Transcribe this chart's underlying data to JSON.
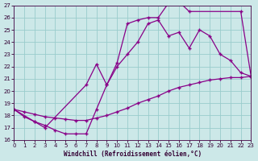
{
  "xlabel": "Windchill (Refroidissement éolien,°C)",
  "bg_color": "#cce8e8",
  "grid_color": "#99cccc",
  "line_color": "#880088",
  "xmin": 0,
  "xmax": 23,
  "ymin": 16,
  "ymax": 27,
  "line1_x": [
    0,
    1,
    2,
    3,
    4,
    5,
    6,
    7,
    8,
    9,
    10,
    11,
    12,
    13,
    14,
    15,
    16,
    17,
    22,
    23
  ],
  "line1_y": [
    18.5,
    17.9,
    17.5,
    17.2,
    16.8,
    16.5,
    16.5,
    16.5,
    18.5,
    20.5,
    22.3,
    25.5,
    25.8,
    26.0,
    26.0,
    27.2,
    27.3,
    26.5,
    26.5,
    21.2
  ],
  "line2_x": [
    0,
    2,
    3,
    7,
    8,
    9,
    10,
    11,
    12,
    13,
    14,
    15,
    16,
    17,
    18,
    19,
    20,
    21,
    22,
    23
  ],
  "line2_y": [
    18.5,
    17.5,
    17.0,
    20.5,
    22.2,
    20.5,
    22.0,
    23.0,
    24.0,
    25.5,
    25.8,
    24.5,
    24.8,
    23.5,
    25.0,
    24.5,
    23.0,
    22.5,
    21.5,
    21.2
  ],
  "line3_x": [
    0,
    1,
    2,
    3,
    4,
    5,
    6,
    7,
    8,
    9,
    10,
    11,
    12,
    13,
    14,
    15,
    16,
    17,
    18,
    19,
    20,
    21,
    22,
    23
  ],
  "line3_y": [
    18.5,
    18.3,
    18.1,
    17.9,
    17.8,
    17.7,
    17.6,
    17.6,
    17.8,
    18.0,
    18.3,
    18.6,
    19.0,
    19.3,
    19.6,
    20.0,
    20.3,
    20.5,
    20.7,
    20.9,
    21.0,
    21.1,
    21.1,
    21.2
  ]
}
